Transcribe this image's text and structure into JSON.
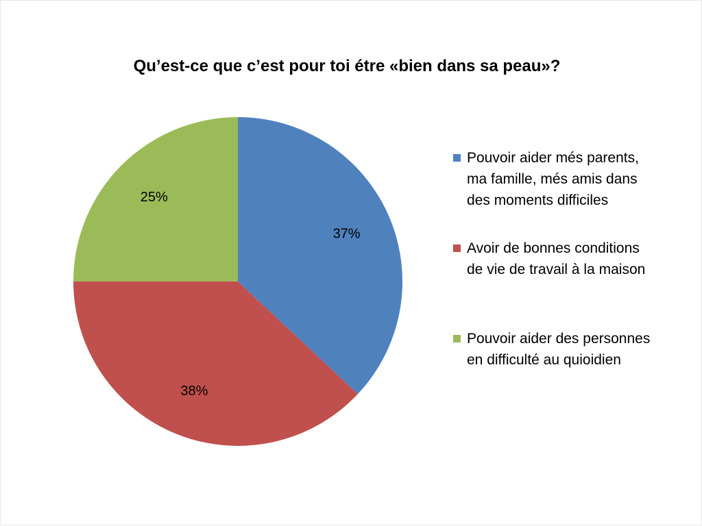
{
  "chart_data": {
    "type": "pie",
    "title": "Qu’est-ce que c’est pour toi étre «bien dans sa peau»?",
    "categories": [
      "Pouvoir aider més parents, ma famille, més amis dans des moments difficiles",
      "Avoir de bonnes conditions de vie de travail à la maison",
      "Pouvoir aider des personnes en difficulté au quioidien"
    ],
    "values": [
      37,
      38,
      25
    ],
    "data_labels": [
      "37%",
      "38%",
      "25%"
    ],
    "colors": [
      "#4F81BD",
      "#C0504D",
      "#9BBB59"
    ],
    "legend_position": "right"
  }
}
